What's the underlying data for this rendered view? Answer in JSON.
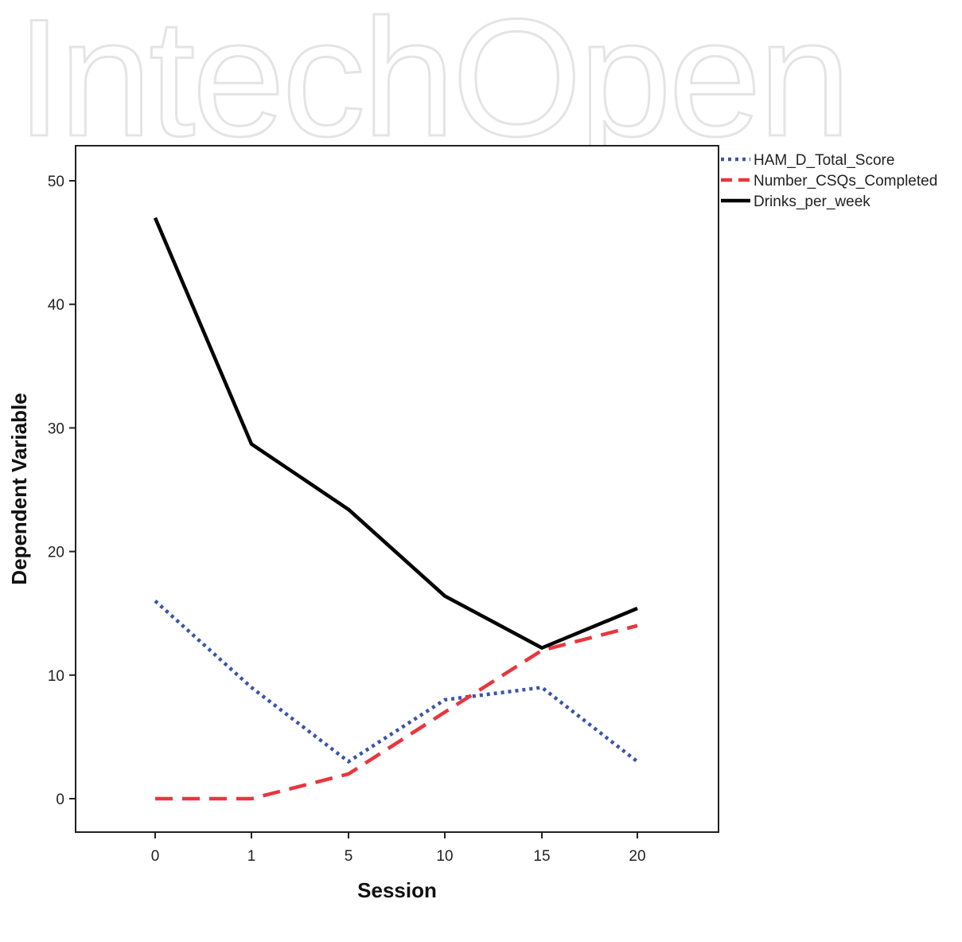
{
  "watermark": "IntechOpen",
  "chart_data": {
    "type": "line",
    "title": "",
    "xlabel": "Session",
    "ylabel": "Dependent Variable",
    "categories": [
      "0",
      "1",
      "5",
      "10",
      "15",
      "20"
    ],
    "ylim": [
      0,
      50
    ],
    "yticks": [
      0,
      10,
      20,
      30,
      40,
      50
    ],
    "grid": false,
    "legend_position": "top-right, outside plot",
    "series": [
      {
        "name": "HAM_D_Total_Score",
        "values": [
          16,
          9,
          3,
          8,
          9,
          3
        ],
        "color": "#3a55a8",
        "style": "dotted"
      },
      {
        "name": "Number_CSQs_Completed",
        "values": [
          0,
          0,
          2,
          7,
          12,
          14
        ],
        "color": "#e8363f",
        "style": "dashed"
      },
      {
        "name": "Drinks_per_week",
        "values": [
          47,
          28.7,
          23.4,
          16.4,
          12.2,
          15.4
        ],
        "color": "#000000",
        "style": "solid"
      }
    ]
  }
}
